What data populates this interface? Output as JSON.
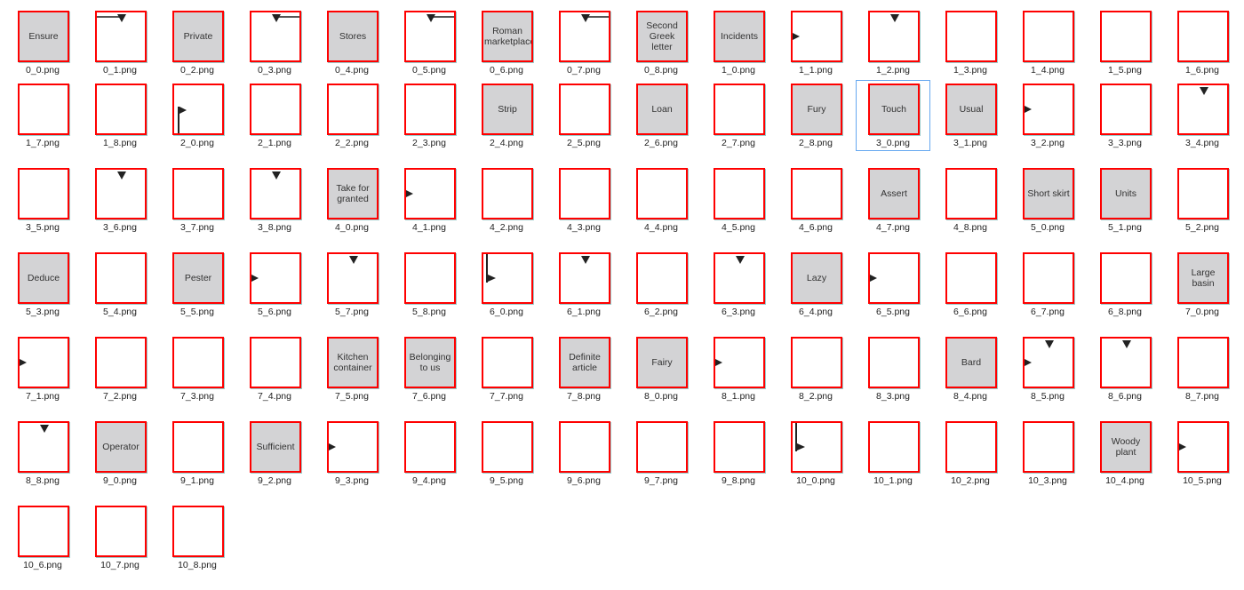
{
  "colors": {
    "thumb_border": "#ff0000",
    "word_bg": "#d3d3d5",
    "selection": "#66a8f0"
  },
  "selected": "3_0.png",
  "files": [
    {
      "name": "0_0.png",
      "word": "Ensure"
    },
    {
      "name": "0_1.png",
      "marks": [
        "line-top-left",
        "arrow-down-top"
      ]
    },
    {
      "name": "0_2.png",
      "word": "Private"
    },
    {
      "name": "0_3.png",
      "marks": [
        "line-top-right",
        "arrow-down-top"
      ]
    },
    {
      "name": "0_4.png",
      "word": "Stores"
    },
    {
      "name": "0_5.png",
      "marks": [
        "line-top-right",
        "arrow-down-top"
      ]
    },
    {
      "name": "0_6.png",
      "word": "Roman marketplace"
    },
    {
      "name": "0_7.png",
      "marks": [
        "line-top-right",
        "arrow-down-top"
      ]
    },
    {
      "name": "0_8.png",
      "word": "Second Greek letter"
    },
    {
      "name": "1_0.png",
      "word": "Incidents"
    },
    {
      "name": "1_1.png",
      "marks": [
        "arrow-right-left"
      ]
    },
    {
      "name": "1_2.png",
      "marks": [
        "arrow-down-top"
      ]
    },
    {
      "name": "1_3.png"
    },
    {
      "name": "1_4.png"
    },
    {
      "name": "1_5.png"
    },
    {
      "name": "1_6.png"
    },
    {
      "name": "1_7.png"
    },
    {
      "name": "1_8.png"
    },
    {
      "name": "2_0.png",
      "marks": [
        "flag-pole",
        "flag-cloth"
      ]
    },
    {
      "name": "2_1.png"
    },
    {
      "name": "2_2.png"
    },
    {
      "name": "2_3.png"
    },
    {
      "name": "2_4.png",
      "word": "Strip"
    },
    {
      "name": "2_5.png"
    },
    {
      "name": "2_6.png",
      "word": "Loan"
    },
    {
      "name": "2_7.png"
    },
    {
      "name": "2_8.png",
      "word": "Fury"
    },
    {
      "name": "3_0.png",
      "word": "Touch"
    },
    {
      "name": "3_1.png",
      "word": "Usual"
    },
    {
      "name": "3_2.png",
      "marks": [
        "arrow-right-left"
      ]
    },
    {
      "name": "3_3.png"
    },
    {
      "name": "3_4.png",
      "marks": [
        "arrow-down-top"
      ]
    },
    {
      "name": "3_5.png"
    },
    {
      "name": "3_6.png",
      "marks": [
        "arrow-down-top"
      ]
    },
    {
      "name": "3_7.png"
    },
    {
      "name": "3_8.png",
      "marks": [
        "arrow-down-top"
      ]
    },
    {
      "name": "4_0.png",
      "word": "Take for granted"
    },
    {
      "name": "4_1.png",
      "marks": [
        "arrow-right-left"
      ]
    },
    {
      "name": "4_2.png"
    },
    {
      "name": "4_3.png"
    },
    {
      "name": "4_4.png"
    },
    {
      "name": "4_5.png"
    },
    {
      "name": "4_6.png"
    },
    {
      "name": "4_7.png",
      "word": "Assert"
    },
    {
      "name": "4_8.png"
    },
    {
      "name": "5_0.png",
      "word": "Short skirt"
    },
    {
      "name": "5_1.png",
      "word": "Units"
    },
    {
      "name": "5_2.png"
    },
    {
      "name": "5_3.png",
      "word": "Deduce"
    },
    {
      "name": "5_4.png"
    },
    {
      "name": "5_5.png",
      "word": "Pester"
    },
    {
      "name": "5_6.png",
      "marks": [
        "arrow-right-left"
      ]
    },
    {
      "name": "5_7.png",
      "marks": [
        "arrow-down-top"
      ]
    },
    {
      "name": "5_8.png"
    },
    {
      "name": "6_0.png",
      "marks": [
        "vline",
        "vline-arrow"
      ]
    },
    {
      "name": "6_1.png",
      "marks": [
        "arrow-down-top"
      ]
    },
    {
      "name": "6_2.png"
    },
    {
      "name": "6_3.png",
      "marks": [
        "arrow-down-top"
      ]
    },
    {
      "name": "6_4.png",
      "word": "Lazy"
    },
    {
      "name": "6_5.png",
      "marks": [
        "arrow-right-left"
      ]
    },
    {
      "name": "6_6.png"
    },
    {
      "name": "6_7.png"
    },
    {
      "name": "6_8.png"
    },
    {
      "name": "7_0.png",
      "word": "Large basin"
    },
    {
      "name": "7_1.png",
      "marks": [
        "arrow-right-left"
      ]
    },
    {
      "name": "7_2.png"
    },
    {
      "name": "7_3.png"
    },
    {
      "name": "7_4.png"
    },
    {
      "name": "7_5.png",
      "word": "Kitchen container"
    },
    {
      "name": "7_6.png",
      "word": "Belonging to us"
    },
    {
      "name": "7_7.png"
    },
    {
      "name": "7_8.png",
      "word": "Definite article"
    },
    {
      "name": "8_0.png",
      "word": "Fairy"
    },
    {
      "name": "8_1.png",
      "marks": [
        "arrow-right-left"
      ]
    },
    {
      "name": "8_2.png"
    },
    {
      "name": "8_3.png"
    },
    {
      "name": "8_4.png",
      "word": "Bard"
    },
    {
      "name": "8_5.png",
      "marks": [
        "arrow-right-left",
        "arrow-down-top"
      ]
    },
    {
      "name": "8_6.png",
      "marks": [
        "arrow-down-top"
      ]
    },
    {
      "name": "8_7.png"
    },
    {
      "name": "8_8.png",
      "marks": [
        "arrow-down-top"
      ]
    },
    {
      "name": "9_0.png",
      "word": "Operator"
    },
    {
      "name": "9_1.png"
    },
    {
      "name": "9_2.png",
      "word": "Sufficient"
    },
    {
      "name": "9_3.png",
      "marks": [
        "arrow-right-left"
      ]
    },
    {
      "name": "9_4.png"
    },
    {
      "name": "9_5.png"
    },
    {
      "name": "9_6.png"
    },
    {
      "name": "9_7.png"
    },
    {
      "name": "9_8.png"
    },
    {
      "name": "10_0.png",
      "marks": [
        "vline",
        "vline-arrow"
      ]
    },
    {
      "name": "10_1.png"
    },
    {
      "name": "10_2.png"
    },
    {
      "name": "10_3.png"
    },
    {
      "name": "10_4.png",
      "word": "Woody plant"
    },
    {
      "name": "10_5.png",
      "marks": [
        "arrow-right-left"
      ]
    },
    {
      "name": "10_6.png"
    },
    {
      "name": "10_7.png"
    },
    {
      "name": "10_8.png"
    }
  ]
}
